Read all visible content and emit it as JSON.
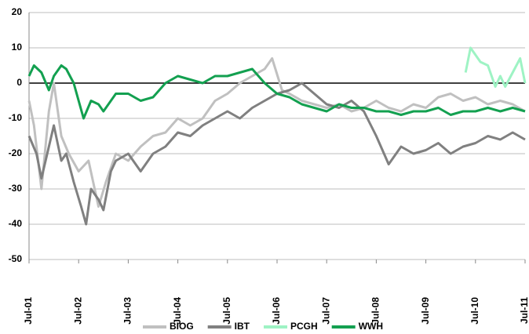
{
  "chart_data": {
    "type": "line",
    "xlim": [
      2001.5,
      2011.5
    ],
    "xticks": [
      {
        "value": 2001.5,
        "label": "Jul-01"
      },
      {
        "value": 2002.5,
        "label": "Jul-02"
      },
      {
        "value": 2003.5,
        "label": "Jul-03"
      },
      {
        "value": 2004.5,
        "label": "Jul-04"
      },
      {
        "value": 2005.5,
        "label": "Jul-05"
      },
      {
        "value": 2006.5,
        "label": "Jul-06"
      },
      {
        "value": 2007.5,
        "label": "Jul-07"
      },
      {
        "value": 2008.5,
        "label": "Jul-08"
      },
      {
        "value": 2009.5,
        "label": "Jul-09"
      },
      {
        "value": 2010.5,
        "label": "Jul-10"
      },
      {
        "value": 2011.5,
        "label": "Jul-11"
      }
    ],
    "ylim": [
      -50,
      20
    ],
    "yticks": [
      -50,
      -40,
      -30,
      -20,
      -10,
      0,
      10,
      20
    ],
    "grid": true,
    "legend": "bottom",
    "series": [
      {
        "name": "BIOG",
        "color": "#c0c0c0",
        "x": [
          2001.5,
          2001.6,
          2001.75,
          2001.9,
          2002.0,
          2002.15,
          2002.3,
          2002.5,
          2002.7,
          2002.9,
          2003.05,
          2003.25,
          2003.5,
          2003.75,
          2004.0,
          2004.25,
          2004.5,
          2004.75,
          2005.0,
          2005.25,
          2005.5,
          2005.75,
          2006.0,
          2006.25,
          2006.4,
          2006.6,
          2006.75,
          2007.0,
          2007.25,
          2007.5,
          2007.75,
          2008.0,
          2008.25,
          2008.5,
          2008.75,
          2009.0,
          2009.25,
          2009.5,
          2009.75,
          2010.0,
          2010.25,
          2010.5,
          2010.75,
          2011.0,
          2011.25,
          2011.5
        ],
        "values": [
          -5,
          -12,
          -30,
          -8,
          0,
          -15,
          -20,
          -25,
          -22,
          -35,
          -28,
          -20,
          -22,
          -18,
          -15,
          -14,
          -10,
          -12,
          -10,
          -5,
          -3,
          0,
          2,
          4,
          7,
          -2,
          -3,
          -5,
          -6,
          -7,
          -6,
          -8,
          -7,
          -5,
          -7,
          -8,
          -6,
          -7,
          -4,
          -3,
          -5,
          -4,
          -6,
          -5,
          -6,
          -8
        ]
      },
      {
        "name": "IBT",
        "color": "#808080",
        "x": [
          2001.5,
          2001.65,
          2001.75,
          2001.9,
          2002.0,
          2002.15,
          2002.25,
          2002.4,
          2002.55,
          2002.65,
          2002.75,
          2002.9,
          2003.0,
          2003.15,
          2003.25,
          2003.5,
          2003.75,
          2004.0,
          2004.25,
          2004.5,
          2004.75,
          2005.0,
          2005.25,
          2005.5,
          2005.75,
          2006.0,
          2006.25,
          2006.5,
          2006.75,
          2007.0,
          2007.25,
          2007.5,
          2007.75,
          2008.0,
          2008.25,
          2008.5,
          2008.75,
          2009.0,
          2009.25,
          2009.5,
          2009.75,
          2010.0,
          2010.25,
          2010.5,
          2010.75,
          2011.0,
          2011.25,
          2011.5
        ],
        "values": [
          -15,
          -20,
          -27,
          -18,
          -12,
          -22,
          -20,
          -28,
          -35,
          -40,
          -30,
          -33,
          -36,
          -25,
          -22,
          -20,
          -25,
          -20,
          -18,
          -14,
          -15,
          -12,
          -10,
          -8,
          -10,
          -7,
          -5,
          -3,
          -2,
          0,
          -3,
          -6,
          -7,
          -5,
          -8,
          -15,
          -23,
          -18,
          -20,
          -19,
          -17,
          -20,
          -18,
          -17,
          -15,
          -16,
          -14,
          -16
        ]
      },
      {
        "name": "PCGH",
        "color": "#9ef3c4",
        "x": [
          2010.3,
          2010.4,
          2010.5,
          2010.6,
          2010.75,
          2010.9,
          2011.0,
          2011.1,
          2011.25,
          2011.4,
          2011.5
        ],
        "values": [
          3,
          10,
          8,
          6,
          5,
          -1,
          2,
          -1,
          3,
          7,
          0
        ]
      },
      {
        "name": "WWH",
        "color": "#13a050",
        "x": [
          2001.5,
          2001.6,
          2001.75,
          2001.9,
          2002.0,
          2002.15,
          2002.25,
          2002.4,
          2002.5,
          2002.6,
          2002.75,
          2002.9,
          2003.0,
          2003.25,
          2003.5,
          2003.75,
          2004.0,
          2004.25,
          2004.5,
          2004.75,
          2005.0,
          2005.25,
          2005.5,
          2005.75,
          2006.0,
          2006.25,
          2006.5,
          2006.75,
          2007.0,
          2007.25,
          2007.5,
          2007.75,
          2008.0,
          2008.25,
          2008.5,
          2008.75,
          2009.0,
          2009.25,
          2009.5,
          2009.75,
          2010.0,
          2010.25,
          2010.5,
          2010.75,
          2011.0,
          2011.25,
          2011.5
        ],
        "values": [
          2,
          5,
          3,
          -2,
          2,
          5,
          4,
          0,
          -5,
          -10,
          -5,
          -6,
          -8,
          -3,
          -3,
          -5,
          -4,
          0,
          2,
          1,
          0,
          2,
          2,
          3,
          4,
          0,
          -3,
          -4,
          -6,
          -7,
          -8,
          -6,
          -7,
          -7,
          -8,
          -8,
          -9,
          -8,
          -8,
          -7,
          -9,
          -8,
          -8,
          -7,
          -8,
          -7,
          -8
        ]
      }
    ]
  }
}
